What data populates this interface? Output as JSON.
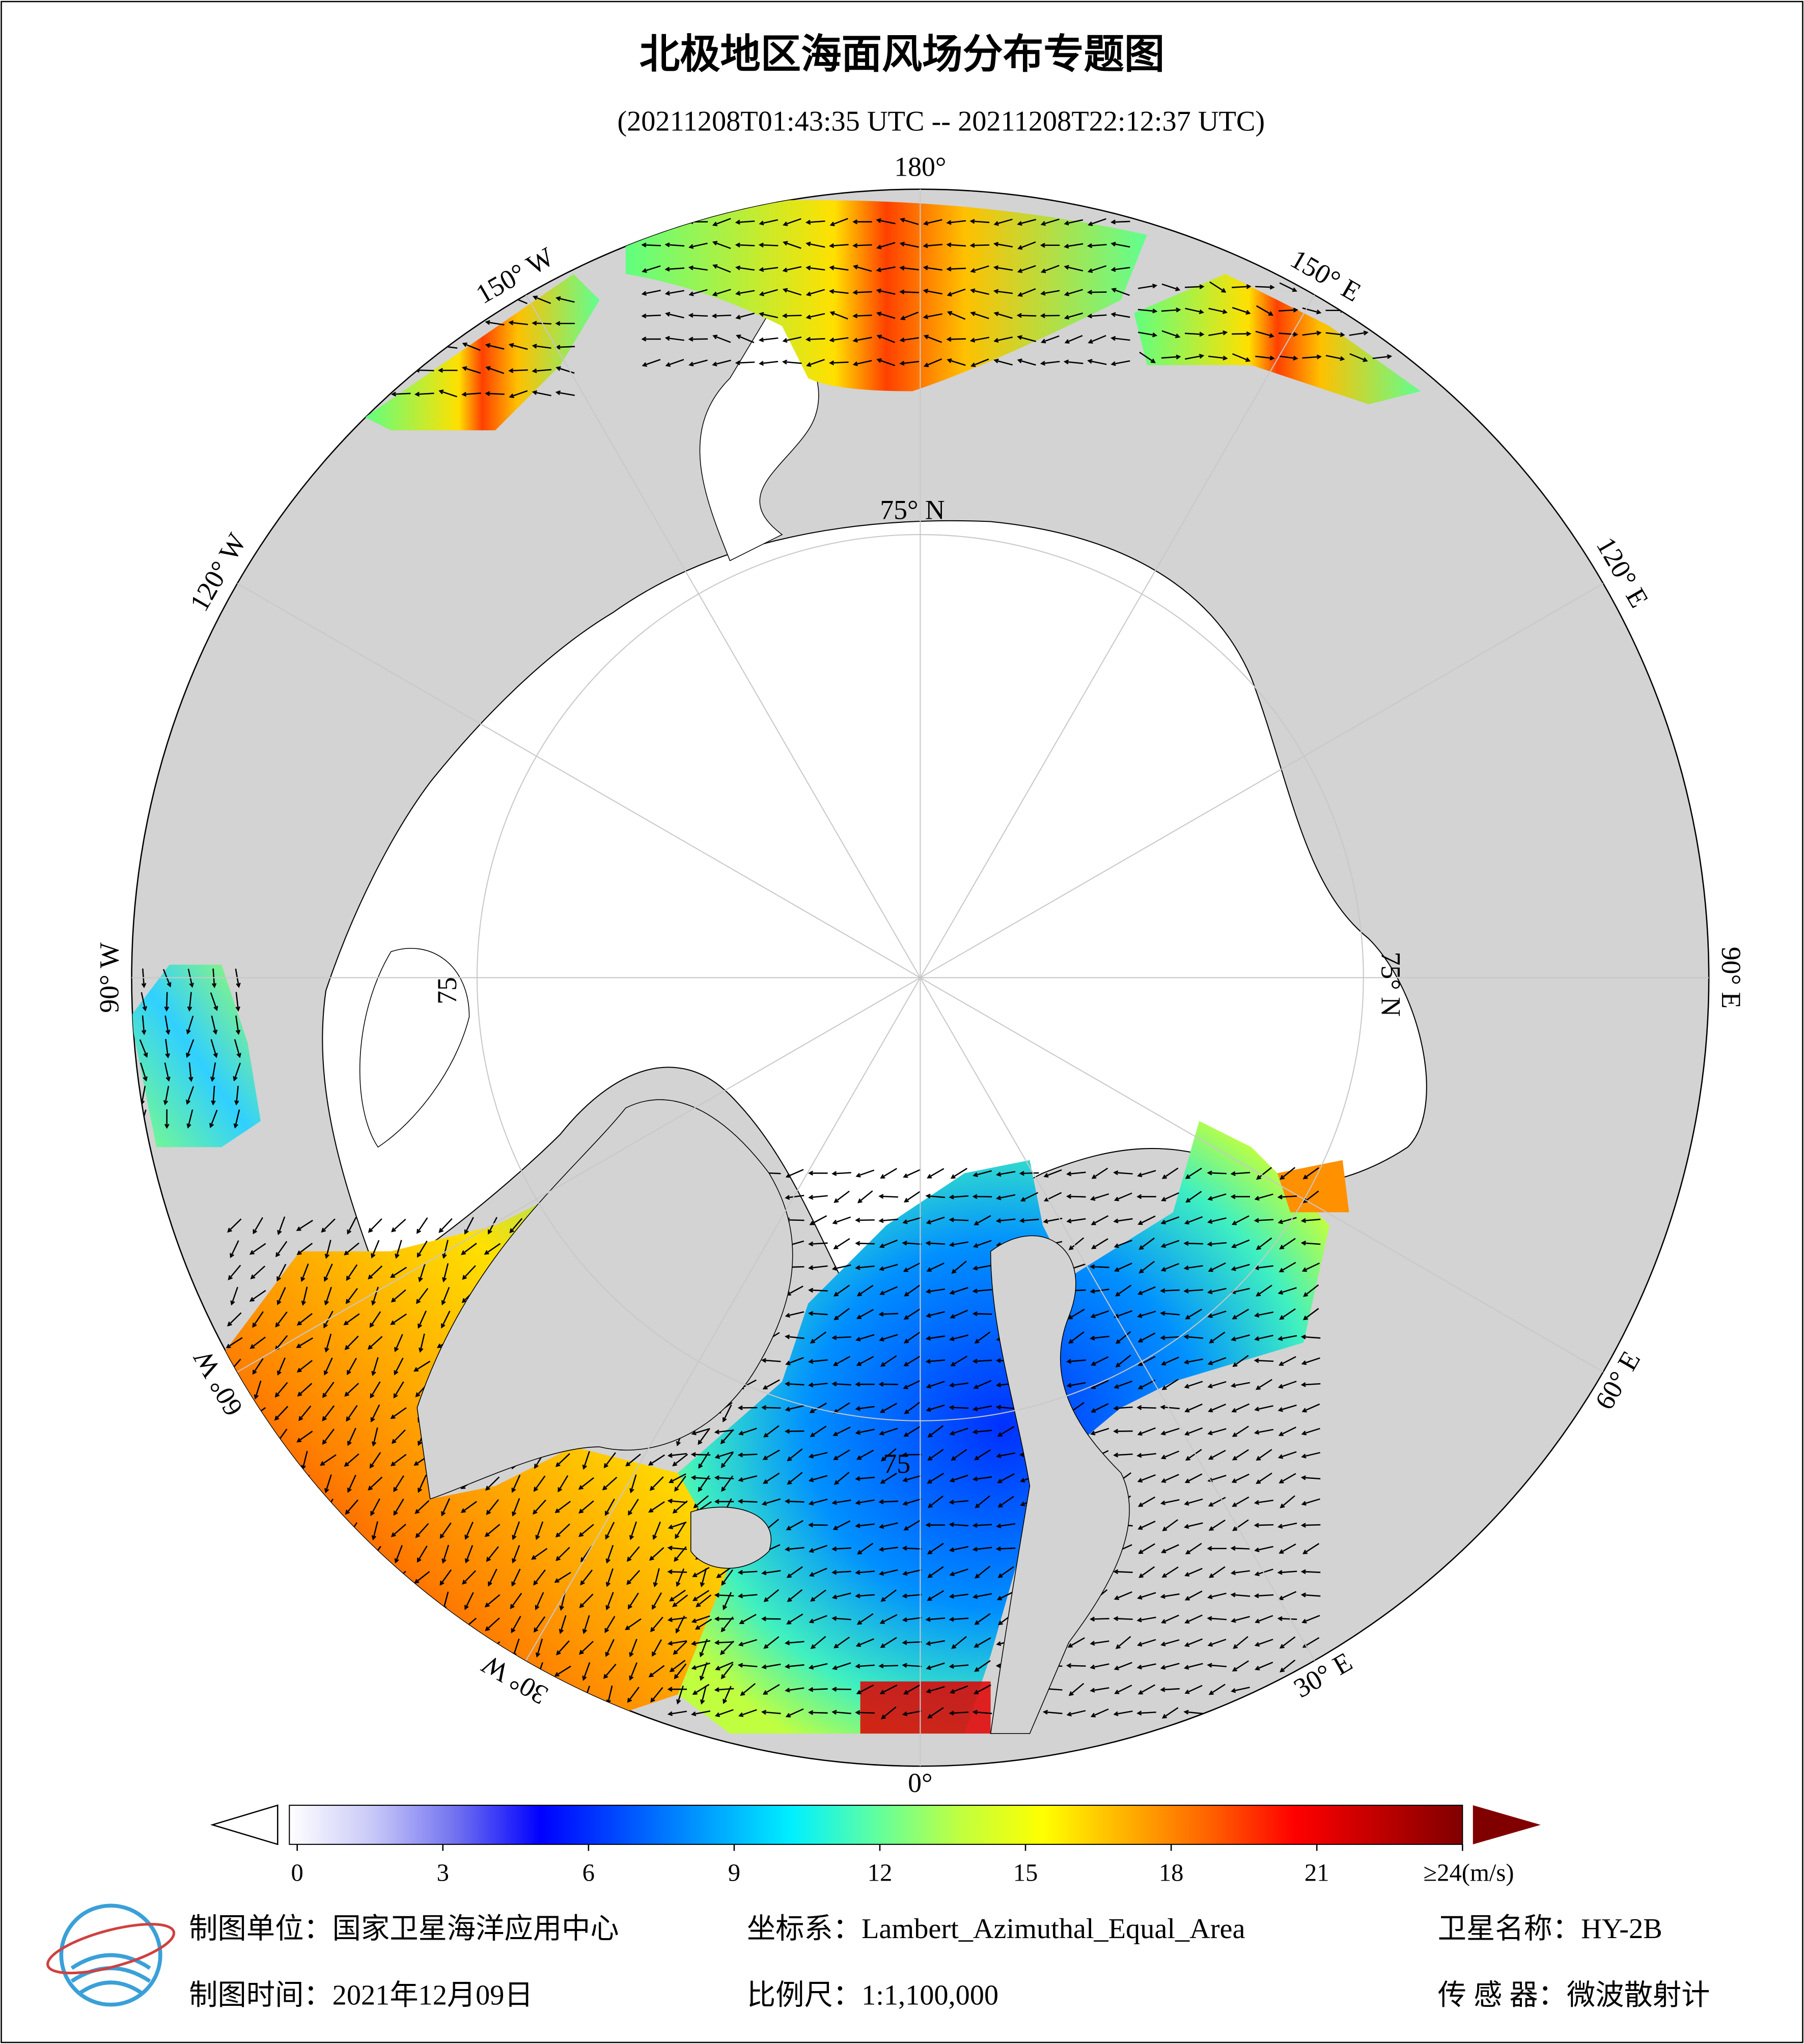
{
  "header": {
    "title": "北极地区海面风场分布专题图",
    "subtitle": "(20211208T01:43:35 UTC -- 20211208T22:12:37 UTC)"
  },
  "map": {
    "longitude_labels": [
      "180°",
      "150° E",
      "120° E",
      "90° E",
      "60° E",
      "30° E",
      "0°",
      "30° W",
      "60° W",
      "90° W",
      "120° W",
      "150° W"
    ],
    "latitude_labels": [
      "75° N",
      "75° N",
      "75",
      "75"
    ]
  },
  "colorbar": {
    "range": [
      0,
      24
    ],
    "ticks": [
      0,
      3,
      6,
      9,
      12,
      15,
      18,
      21,
      {
        "value": 24,
        "label": "≥24(m/s)"
      }
    ],
    "colors": [
      "#ffffff",
      "#c8c8f8",
      "#7070f0",
      "#0000ff",
      "#0050ff",
      "#00a0ff",
      "#00f0ff",
      "#60ffa0",
      "#c0ff40",
      "#ffff00",
      "#ffb000",
      "#ff6000",
      "#ff0000",
      "#c00000",
      "#800000"
    ]
  },
  "footer": {
    "unit": "制图单位：国家卫星海洋应用中心",
    "projection": "坐标系：Lambert_Azimuthal_Equal_Area",
    "satellite": "卫星名称：HY-2B",
    "date": "制图时间：2021年12月09日",
    "scale": "比例尺：1:1,100,000",
    "sensor": "传 感 器：微波散射计"
  }
}
